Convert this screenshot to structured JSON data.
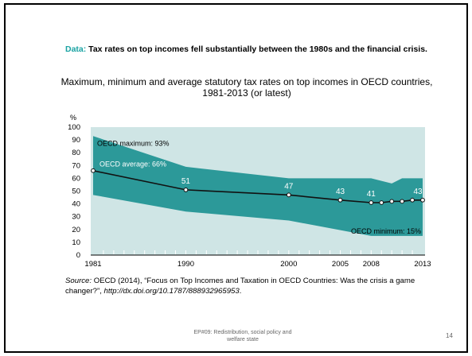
{
  "slide": {
    "headline_prefix": "Data:",
    "headline_text": " Tax rates on top incomes fell substantially between the 1980s and the financial crisis.",
    "source_label": "Source:",
    "source_text": " OECD (2014), “Focus on Top Incomes and Taxation in OECD Countries: Was the crisis a game changer?”, ",
    "source_link": "http://dx.doi.org/10.1787/888932965953",
    "source_end": ".",
    "footer_line1": "EP#09: Redistribution, social policy and",
    "footer_line2": "welfare state",
    "page_number": "14"
  },
  "chart_data": {
    "type": "area",
    "title": "Maximum, minimum and average statutory tax rates on top incomes in OECD countries, 1981-2013 (or latest)",
    "ylabel": "%",
    "xlabel": "",
    "ylim": [
      0,
      100
    ],
    "xlim": [
      1981,
      2013
    ],
    "yticks": [
      0,
      10,
      20,
      30,
      40,
      50,
      60,
      70,
      80,
      90,
      100
    ],
    "xtick_labels": [
      1981,
      1990,
      2000,
      2005,
      2008,
      2013
    ],
    "grid": false,
    "colors": {
      "band": "#2c9999",
      "panel": "#cfe5e5",
      "line": "#111111"
    },
    "series": [
      {
        "name": "OECD maximum",
        "x": [
          1981,
          1990,
          2000,
          2008,
          2010,
          2011,
          2013
        ],
        "values": [
          93,
          69,
          60,
          60,
          56,
          60,
          60
        ]
      },
      {
        "name": "OECD minimum",
        "x": [
          1981,
          1990,
          2000,
          2008,
          2013
        ],
        "values": [
          47,
          34,
          27,
          15,
          15
        ]
      },
      {
        "name": "OECD average",
        "x": [
          1981,
          1990,
          2000,
          2005,
          2008,
          2009,
          2010,
          2011,
          2012,
          2013
        ],
        "values": [
          66,
          51,
          47,
          43,
          41,
          41,
          42,
          42,
          43,
          43
        ]
      }
    ],
    "annotations": [
      {
        "text": "OECD maximum: 93%"
      },
      {
        "text": "OECD average: 66%"
      },
      {
        "text": "OECD minimum: 15%"
      }
    ],
    "data_labels": [
      {
        "x": 1990,
        "text": "51"
      },
      {
        "x": 2000,
        "text": "47"
      },
      {
        "x": 2005,
        "text": "43"
      },
      {
        "x": 2008,
        "text": "41"
      },
      {
        "x": 2013,
        "text": "43"
      }
    ]
  }
}
